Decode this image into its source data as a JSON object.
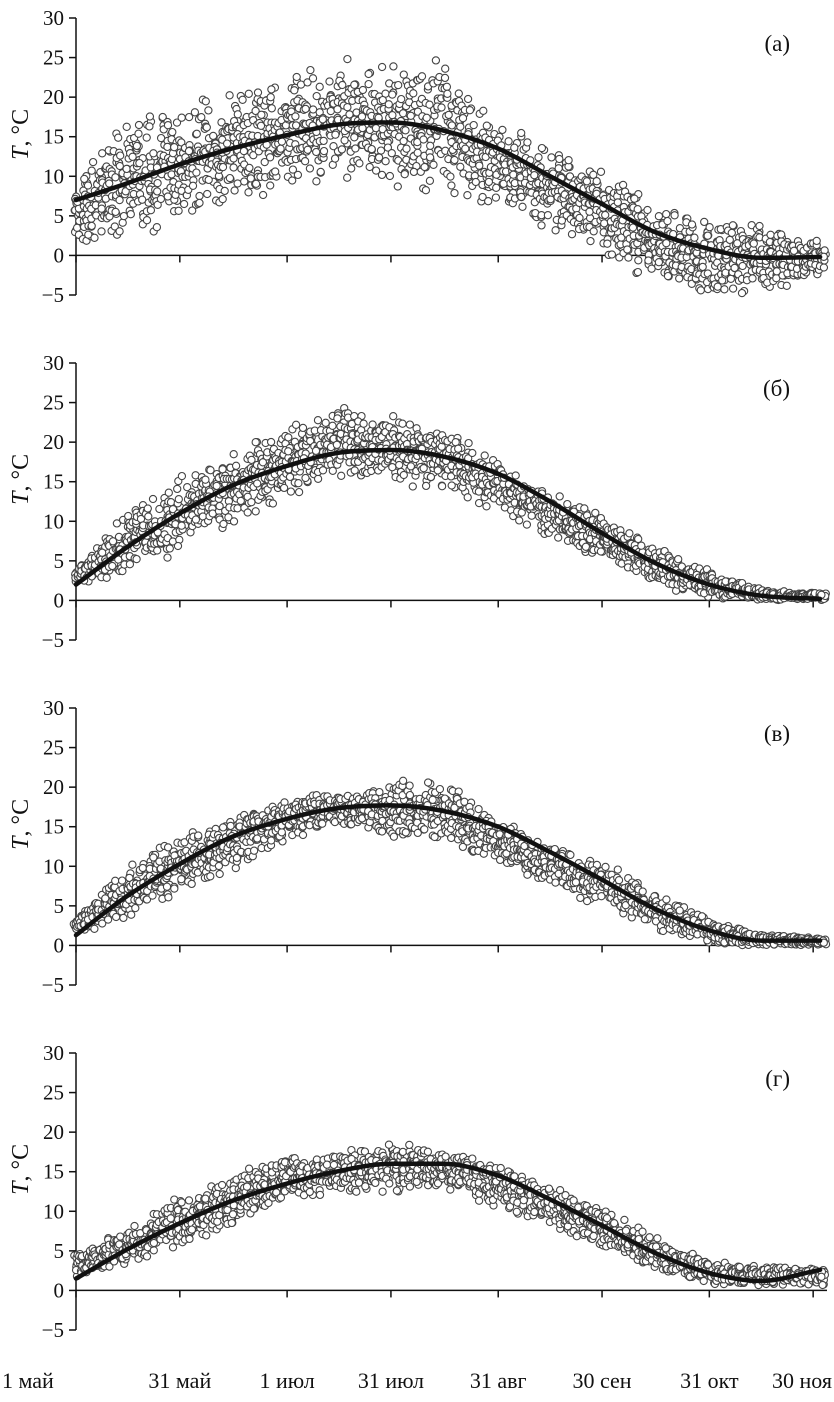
{
  "chart_data": [
    {
      "type": "scatter",
      "panel_label": "(а)",
      "ylabel": {
        "italic": "T",
        "rest": ", °C"
      },
      "ylim": [
        -5,
        30
      ],
      "y_ticks": [
        "30",
        "25",
        "20",
        "15",
        "10",
        "5",
        "0",
        "−5"
      ],
      "x_ticks": [
        "1 май",
        "31 май",
        "1 июл",
        "31 июл",
        "31 авг",
        "30 сен",
        "31 окт",
        "30 ноя"
      ],
      "x_tick_dates": [
        "2000-05-01",
        "2000-05-31",
        "2000-07-01",
        "2000-07-31",
        "2000-08-31",
        "2000-09-30",
        "2000-10-31",
        "2000-11-30"
      ],
      "xlim": [
        "2000-05-01",
        "2000-12-04"
      ],
      "x_tick_labels_shown": false,
      "series": [
        {
          "kind": "observations",
          "marker": "open-circle",
          "envelope": [
            {
              "x": "2000-05-01",
              "y_low": 1,
              "y_high": 9
            },
            {
              "x": "2000-05-15",
              "y_low": 2,
              "y_high": 18
            },
            {
              "x": "2000-05-31",
              "y_low": 3,
              "y_high": 19
            },
            {
              "x": "2000-06-15",
              "y_low": 5,
              "y_high": 22
            },
            {
              "x": "2000-07-01",
              "y_low": 8,
              "y_high": 23
            },
            {
              "x": "2000-07-15",
              "y_low": 9,
              "y_high": 26
            },
            {
              "x": "2000-07-31",
              "y_low": 8,
              "y_high": 24
            },
            {
              "x": "2000-08-15",
              "y_low": 7,
              "y_high": 25
            },
            {
              "x": "2000-08-31",
              "y_low": 6,
              "y_high": 17
            },
            {
              "x": "2000-09-15",
              "y_low": 3,
              "y_high": 14
            },
            {
              "x": "2000-09-30",
              "y_low": 0,
              "y_high": 11
            },
            {
              "x": "2000-10-15",
              "y_low": -4,
              "y_high": 7
            },
            {
              "x": "2000-10-31",
              "y_low": -5,
              "y_high": 5
            },
            {
              "x": "2000-11-15",
              "y_low": -5,
              "y_high": 4
            },
            {
              "x": "2000-11-30",
              "y_low": -3,
              "y_high": 2
            }
          ]
        },
        {
          "kind": "smoothed-fit",
          "points": [
            {
              "x": "2000-05-01",
              "y": 7
            },
            {
              "x": "2000-05-15",
              "y": 9
            },
            {
              "x": "2000-05-31",
              "y": 11.5
            },
            {
              "x": "2000-06-15",
              "y": 13.5
            },
            {
              "x": "2000-07-01",
              "y": 15.2
            },
            {
              "x": "2000-07-15",
              "y": 16.5
            },
            {
              "x": "2000-07-31",
              "y": 16.8
            },
            {
              "x": "2000-08-15",
              "y": 15.8
            },
            {
              "x": "2000-08-31",
              "y": 13.5
            },
            {
              "x": "2000-09-15",
              "y": 10
            },
            {
              "x": "2000-09-30",
              "y": 6.5
            },
            {
              "x": "2000-10-15",
              "y": 3
            },
            {
              "x": "2000-10-31",
              "y": 0.8
            },
            {
              "x": "2000-11-15",
              "y": -0.3
            },
            {
              "x": "2000-12-02",
              "y": -0.2
            }
          ]
        }
      ]
    },
    {
      "type": "scatter",
      "panel_label": "(б)",
      "ylabel": {
        "italic": "T",
        "rest": ", °C"
      },
      "ylim": [
        -5,
        30
      ],
      "y_ticks": [
        "30",
        "25",
        "20",
        "15",
        "10",
        "5",
        "0",
        "−5"
      ],
      "x_ticks": [
        "1 май",
        "31 май",
        "1 июл",
        "31 июл",
        "31 авг",
        "30 сен",
        "31 окт",
        "30 ноя"
      ],
      "x_tick_dates": [
        "2000-05-01",
        "2000-05-31",
        "2000-07-01",
        "2000-07-31",
        "2000-08-31",
        "2000-09-30",
        "2000-10-31",
        "2000-11-30"
      ],
      "xlim": [
        "2000-05-01",
        "2000-12-04"
      ],
      "x_tick_labels_shown": false,
      "series": [
        {
          "kind": "observations",
          "marker": "open-circle",
          "envelope": [
            {
              "x": "2000-05-01",
              "y_low": 2,
              "y_high": 4
            },
            {
              "x": "2000-05-15",
              "y_low": 3,
              "y_high": 11
            },
            {
              "x": "2000-05-31",
              "y_low": 6,
              "y_high": 16
            },
            {
              "x": "2000-06-15",
              "y_low": 9,
              "y_high": 19
            },
            {
              "x": "2000-07-01",
              "y_low": 13,
              "y_high": 22
            },
            {
              "x": "2000-07-15",
              "y_low": 15,
              "y_high": 25
            },
            {
              "x": "2000-07-31",
              "y_low": 15,
              "y_high": 24
            },
            {
              "x": "2000-08-15",
              "y_low": 13,
              "y_high": 23
            },
            {
              "x": "2000-08-31",
              "y_low": 11,
              "y_high": 18
            },
            {
              "x": "2000-09-15",
              "y_low": 8,
              "y_high": 14
            },
            {
              "x": "2000-09-30",
              "y_low": 5,
              "y_high": 11
            },
            {
              "x": "2000-10-15",
              "y_low": 2,
              "y_high": 7
            },
            {
              "x": "2000-10-31",
              "y_low": 0,
              "y_high": 4
            },
            {
              "x": "2000-11-15",
              "y_low": 0,
              "y_high": 1.5
            },
            {
              "x": "2000-11-30",
              "y_low": 0,
              "y_high": 1
            }
          ]
        },
        {
          "kind": "smoothed-fit",
          "points": [
            {
              "x": "2000-05-01",
              "y": 2
            },
            {
              "x": "2000-05-15",
              "y": 6.5
            },
            {
              "x": "2000-05-31",
              "y": 11
            },
            {
              "x": "2000-06-15",
              "y": 14.5
            },
            {
              "x": "2000-07-01",
              "y": 17
            },
            {
              "x": "2000-07-15",
              "y": 18.6
            },
            {
              "x": "2000-07-31",
              "y": 19
            },
            {
              "x": "2000-08-15",
              "y": 18.2
            },
            {
              "x": "2000-08-31",
              "y": 16
            },
            {
              "x": "2000-09-15",
              "y": 12.5
            },
            {
              "x": "2000-09-30",
              "y": 8.5
            },
            {
              "x": "2000-10-15",
              "y": 4.8
            },
            {
              "x": "2000-10-31",
              "y": 2
            },
            {
              "x": "2000-11-15",
              "y": 0.6
            },
            {
              "x": "2000-12-02",
              "y": 0.2
            }
          ]
        }
      ]
    },
    {
      "type": "scatter",
      "panel_label": "(в)",
      "ylabel": {
        "italic": "T",
        "rest": ", °C"
      },
      "ylim": [
        -5,
        30
      ],
      "y_ticks": [
        "30",
        "25",
        "20",
        "15",
        "10",
        "5",
        "0",
        "−5"
      ],
      "x_ticks": [
        "1 май",
        "31 май",
        "1 июл",
        "31 июл",
        "31 авг",
        "30 сен",
        "31 окт",
        "30 ноя"
      ],
      "x_tick_dates": [
        "2000-05-01",
        "2000-05-31",
        "2000-07-01",
        "2000-07-31",
        "2000-08-31",
        "2000-09-30",
        "2000-10-31",
        "2000-11-30"
      ],
      "xlim": [
        "2000-05-01",
        "2000-12-04"
      ],
      "x_tick_labels_shown": false,
      "series": [
        {
          "kind": "observations",
          "marker": "open-circle",
          "envelope": [
            {
              "x": "2000-05-01",
              "y_low": 1.5,
              "y_high": 3.5
            },
            {
              "x": "2000-05-15",
              "y_low": 3,
              "y_high": 10
            },
            {
              "x": "2000-05-31",
              "y_low": 6,
              "y_high": 14
            },
            {
              "x": "2000-06-15",
              "y_low": 9,
              "y_high": 17
            },
            {
              "x": "2000-07-01",
              "y_low": 13,
              "y_high": 19
            },
            {
              "x": "2000-07-15",
              "y_low": 15,
              "y_high": 19.5
            },
            {
              "x": "2000-07-31",
              "y_low": 13,
              "y_high": 21
            },
            {
              "x": "2000-08-15",
              "y_low": 13,
              "y_high": 21
            },
            {
              "x": "2000-08-31",
              "y_low": 10,
              "y_high": 16
            },
            {
              "x": "2000-09-15",
              "y_low": 7,
              "y_high": 13
            },
            {
              "x": "2000-09-30",
              "y_low": 5,
              "y_high": 11
            },
            {
              "x": "2000-10-15",
              "y_low": 2,
              "y_high": 7
            },
            {
              "x": "2000-10-31",
              "y_low": 0,
              "y_high": 3.5
            },
            {
              "x": "2000-11-15",
              "y_low": 0,
              "y_high": 1.5
            },
            {
              "x": "2000-11-30",
              "y_low": 0,
              "y_high": 1
            }
          ]
        },
        {
          "kind": "smoothed-fit",
          "points": [
            {
              "x": "2000-05-01",
              "y": 1.3
            },
            {
              "x": "2000-05-15",
              "y": 6
            },
            {
              "x": "2000-05-31",
              "y": 10.3
            },
            {
              "x": "2000-06-15",
              "y": 13.7
            },
            {
              "x": "2000-07-01",
              "y": 16
            },
            {
              "x": "2000-07-15",
              "y": 17.3
            },
            {
              "x": "2000-07-31",
              "y": 17.7
            },
            {
              "x": "2000-08-15",
              "y": 17
            },
            {
              "x": "2000-08-31",
              "y": 15
            },
            {
              "x": "2000-09-15",
              "y": 11.8
            },
            {
              "x": "2000-09-30",
              "y": 8.3
            },
            {
              "x": "2000-10-15",
              "y": 4.7
            },
            {
              "x": "2000-10-31",
              "y": 1.9
            },
            {
              "x": "2000-11-15",
              "y": 0.6
            },
            {
              "x": "2000-12-02",
              "y": 0.6
            }
          ]
        }
      ]
    },
    {
      "type": "scatter",
      "panel_label": "(г)",
      "ylabel": {
        "italic": "T",
        "rest": ", °C"
      },
      "ylim": [
        -5,
        30
      ],
      "y_ticks": [
        "30",
        "25",
        "20",
        "15",
        "10",
        "5",
        "0",
        "−5"
      ],
      "x_ticks": [
        "1 май",
        "31 май",
        "1 июл",
        "31 июл",
        "31 авг",
        "30 сен",
        "31 окт",
        "30 ноя"
      ],
      "x_tick_dates": [
        "2000-05-01",
        "2000-05-31",
        "2000-07-01",
        "2000-07-31",
        "2000-08-31",
        "2000-09-30",
        "2000-10-31",
        "2000-11-30"
      ],
      "xlim": [
        "2000-05-01",
        "2000-12-04"
      ],
      "x_tick_labels_shown": true,
      "series": [
        {
          "kind": "observations",
          "marker": "open-circle",
          "envelope": [
            {
              "x": "2000-05-01",
              "y_low": 1.5,
              "y_high": 5
            },
            {
              "x": "2000-05-15",
              "y_low": 3,
              "y_high": 8
            },
            {
              "x": "2000-05-31",
              "y_low": 5,
              "y_high": 12
            },
            {
              "x": "2000-06-15",
              "y_low": 8,
              "y_high": 15
            },
            {
              "x": "2000-07-01",
              "y_low": 11,
              "y_high": 17
            },
            {
              "x": "2000-07-15",
              "y_low": 12,
              "y_high": 17.5
            },
            {
              "x": "2000-07-31",
              "y_low": 12,
              "y_high": 19
            },
            {
              "x": "2000-08-15",
              "y_low": 13,
              "y_high": 18
            },
            {
              "x": "2000-08-31",
              "y_low": 10,
              "y_high": 16
            },
            {
              "x": "2000-09-15",
              "y_low": 8,
              "y_high": 13.5
            },
            {
              "x": "2000-09-30",
              "y_low": 5,
              "y_high": 11
            },
            {
              "x": "2000-10-15",
              "y_low": 2.5,
              "y_high": 7
            },
            {
              "x": "2000-10-31",
              "y_low": 0.5,
              "y_high": 4
            },
            {
              "x": "2000-11-15",
              "y_low": 0.5,
              "y_high": 3
            },
            {
              "x": "2000-11-30",
              "y_low": 0.5,
              "y_high": 3
            }
          ]
        },
        {
          "kind": "smoothed-fit",
          "points": [
            {
              "x": "2000-05-01",
              "y": 1.5
            },
            {
              "x": "2000-05-15",
              "y": 5
            },
            {
              "x": "2000-05-31",
              "y": 8.5
            },
            {
              "x": "2000-06-15",
              "y": 11.3
            },
            {
              "x": "2000-07-01",
              "y": 13.5
            },
            {
              "x": "2000-07-15",
              "y": 15
            },
            {
              "x": "2000-07-31",
              "y": 16
            },
            {
              "x": "2000-08-15",
              "y": 16
            },
            {
              "x": "2000-08-31",
              "y": 14.5
            },
            {
              "x": "2000-09-15",
              "y": 11.5
            },
            {
              "x": "2000-09-30",
              "y": 8.2
            },
            {
              "x": "2000-10-15",
              "y": 4.8
            },
            {
              "x": "2000-10-31",
              "y": 2.2
            },
            {
              "x": "2000-11-15",
              "y": 1.2
            },
            {
              "x": "2000-12-02",
              "y": 2.6
            }
          ]
        }
      ]
    }
  ]
}
